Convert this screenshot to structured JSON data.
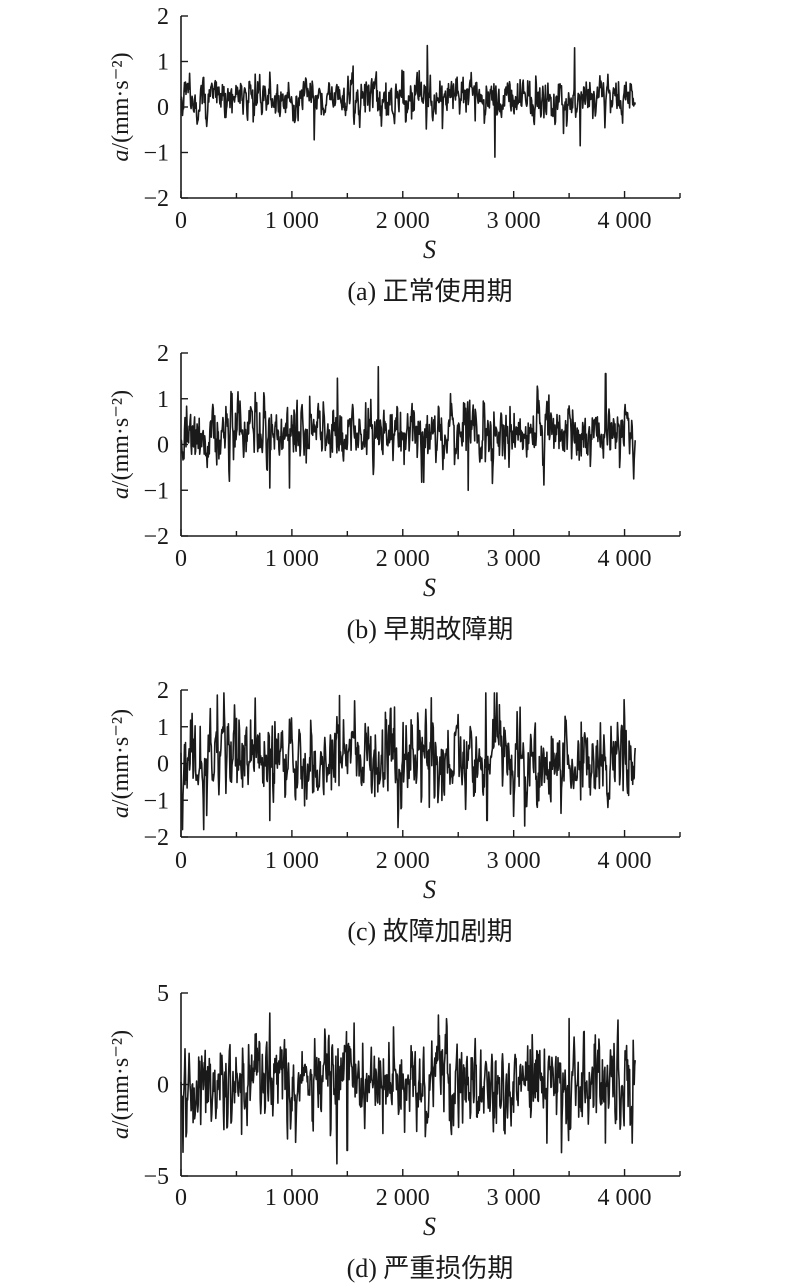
{
  "chart_data": [
    {
      "type": "line",
      "caption": "(a) 正常使用期",
      "xlabel": "S",
      "ylabel": "a/(mm·s⁻²)",
      "xlim": [
        0,
        4500
      ],
      "ylim": [
        -2,
        2
      ],
      "xticks": [
        0,
        1000,
        2000,
        3000,
        4000
      ],
      "xtick_labels": [
        "0",
        "1 000",
        "2 000",
        "3 000",
        "4 000"
      ],
      "yticks": [
        -2,
        -1,
        0,
        1,
        2
      ],
      "ytick_labels": [
        "−2",
        "−1",
        "0",
        "1",
        "2"
      ],
      "series": [
        {
          "x_start": 0,
          "x_end": 4096,
          "mean": 0.2,
          "amplitude": 0.38,
          "peaks": [
            [
              2220,
              1.35
            ],
            [
              3550,
              1.3
            ],
            [
              2830,
              -1.1
            ],
            [
              3600,
              -0.85
            ],
            [
              1200,
              -0.72
            ]
          ]
        }
      ]
    },
    {
      "type": "line",
      "caption": "(b) 早期故障期",
      "xlabel": "S",
      "ylabel": "a/(mm·s⁻²)",
      "xlim": [
        0,
        4500
      ],
      "ylim": [
        -2,
        2
      ],
      "xticks": [
        0,
        1000,
        2000,
        3000,
        4000
      ],
      "xtick_labels": [
        "0",
        "1 000",
        "2 000",
        "3 000",
        "4 000"
      ],
      "yticks": [
        -2,
        -1,
        0,
        1,
        2
      ],
      "ytick_labels": [
        "−2",
        "−1",
        "0",
        "1",
        "2"
      ],
      "series": [
        {
          "x_start": 0,
          "x_end": 4096,
          "mean": 0.25,
          "amplitude": 0.55,
          "peaks": [
            [
              1780,
              1.7
            ],
            [
              1410,
              1.45
            ],
            [
              3830,
              1.55
            ],
            [
              2590,
              -1.0
            ],
            [
              980,
              -0.95
            ],
            [
              800,
              -0.95
            ]
          ]
        }
      ]
    },
    {
      "type": "line",
      "caption": "(c) 故障加剧期",
      "xlabel": "S",
      "ylabel": "a/(mm·s⁻²)",
      "xlim": [
        0,
        4500
      ],
      "ylim": [
        -2,
        2
      ],
      "xticks": [
        0,
        1000,
        2000,
        3000,
        4000
      ],
      "xtick_labels": [
        "0",
        "1 000",
        "2 000",
        "3 000",
        "4 000"
      ],
      "yticks": [
        -2,
        -1,
        0,
        1,
        2
      ],
      "ytick_labels": [
        "−2",
        "−1",
        "0",
        "1",
        "2"
      ],
      "series": [
        {
          "x_start": 0,
          "x_end": 4096,
          "mean": 0.15,
          "amplitude": 0.95,
          "peaks": [
            [
              2750,
              2.15
            ],
            [
              3100,
              -1.7
            ],
            [
              2760,
              -1.55
            ],
            [
              800,
              -1.55
            ],
            [
              1430,
              1.85
            ]
          ]
        }
      ]
    },
    {
      "type": "line",
      "caption": "(d) 严重损伤期",
      "xlabel": "S",
      "ylabel": "a/(mm·s⁻²)",
      "xlim": [
        0,
        4500
      ],
      "ylim": [
        -5,
        5
      ],
      "xticks": [
        0,
        1000,
        2000,
        3000,
        4000
      ],
      "xtick_labels": [
        "0",
        "1 000",
        "2 000",
        "3 000",
        "4 000"
      ],
      "yticks": [
        -5,
        0,
        5
      ],
      "ytick_labels": [
        "−5",
        "0",
        "5"
      ],
      "series": [
        {
          "x_start": 0,
          "x_end": 4096,
          "mean": 0.1,
          "amplitude": 2.0,
          "peaks": [
            [
              20,
              -3.7
            ],
            [
              800,
              3.9
            ],
            [
              3500,
              3.6
            ],
            [
              1500,
              -3.6
            ],
            [
              2320,
              3.8
            ],
            [
              3300,
              -3.2
            ],
            [
              4070,
              -3.2
            ]
          ]
        }
      ]
    }
  ]
}
